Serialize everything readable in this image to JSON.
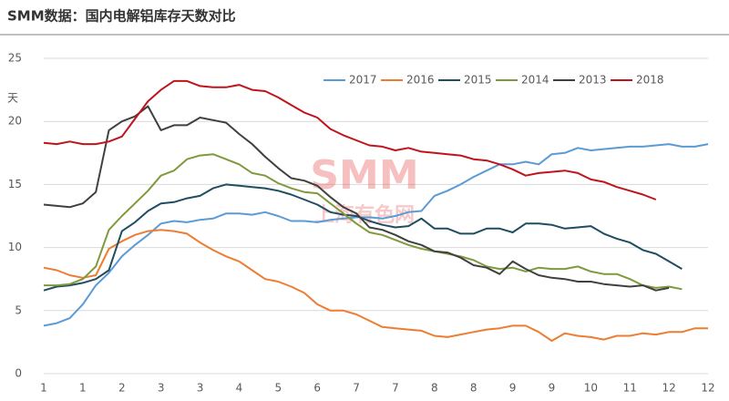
{
  "chart_data": {
    "type": "line",
    "title": "SMM数据：国内电解铝库存天数对比",
    "y_label": "天",
    "watermark": [
      "SMM",
      "上海有色网"
    ],
    "categories": [
      "1",
      null,
      null,
      "1",
      null,
      null,
      "2",
      null,
      null,
      "3",
      null,
      null,
      "3",
      null,
      null,
      "4",
      null,
      null,
      "5",
      null,
      null,
      "6",
      null,
      null,
      "7",
      null,
      null,
      "7",
      null,
      null,
      "8",
      null,
      null,
      "8",
      null,
      null,
      "9",
      null,
      null,
      "9",
      null,
      null,
      "10",
      null,
      null,
      "11",
      null,
      null,
      "12",
      null,
      null,
      "12"
    ],
    "ylim": [
      0,
      25
    ],
    "yticks": [
      0,
      5,
      10,
      15,
      20,
      25
    ],
    "grid": true,
    "legend": "top",
    "series": [
      {
        "name": "2017",
        "color": "#5b9bd5",
        "values": [
          3.8,
          4.0,
          4.4,
          5.5,
          7.0,
          8.0,
          9.3,
          10.2,
          11.0,
          11.9,
          12.1,
          12.0,
          12.2,
          12.3,
          12.7,
          12.7,
          12.6,
          12.8,
          12.5,
          12.1,
          12.1,
          12.0,
          12.2,
          12.3,
          12.4,
          12.4,
          12.3,
          12.5,
          12.8,
          12.9,
          14.1,
          14.5,
          15.0,
          15.6,
          16.1,
          16.6,
          16.6,
          16.8,
          16.6,
          17.4,
          17.5,
          17.9,
          17.7,
          17.8,
          17.9,
          18.0,
          18.0,
          18.1,
          18.2,
          18.0,
          18.0,
          18.2
        ]
      },
      {
        "name": "2016",
        "color": "#ed7d31",
        "values": [
          8.4,
          8.2,
          7.8,
          7.6,
          7.8,
          9.9,
          10.5,
          11.0,
          11.3,
          11.4,
          11.3,
          11.1,
          10.4,
          9.8,
          9.3,
          8.9,
          8.2,
          7.5,
          7.3,
          6.9,
          6.4,
          5.5,
          5.0,
          5.0,
          4.7,
          4.2,
          3.7,
          3.6,
          3.5,
          3.4,
          3.0,
          2.9,
          3.1,
          3.3,
          3.5,
          3.6,
          3.8,
          3.8,
          3.3,
          2.6,
          3.2,
          3.0,
          2.9,
          2.7,
          3.0,
          3.0,
          3.2,
          3.1,
          3.3,
          3.3,
          3.6,
          3.6
        ]
      },
      {
        "name": "2015",
        "color": "#1f4e5f",
        "values": [
          6.6,
          6.9,
          7.0,
          7.2,
          7.5,
          8.2,
          11.3,
          12.0,
          12.9,
          13.5,
          13.6,
          13.9,
          14.1,
          14.7,
          15.0,
          14.9,
          14.8,
          14.7,
          14.5,
          14.2,
          13.8,
          13.4,
          12.8,
          12.6,
          12.5,
          12.1,
          11.8,
          11.6,
          11.7,
          12.3,
          11.5,
          11.5,
          11.1,
          11.1,
          11.5,
          11.5,
          11.2,
          11.9,
          11.9,
          11.8,
          11.5,
          11.6,
          11.7,
          11.1,
          10.7,
          10.4,
          9.8,
          9.5,
          8.9,
          8.3,
          null,
          null
        ]
      },
      {
        "name": "2014",
        "color": "#7f9a3c",
        "values": [
          7.0,
          7.0,
          7.1,
          7.5,
          8.5,
          11.4,
          12.5,
          13.5,
          14.5,
          15.7,
          16.1,
          17.0,
          17.3,
          17.4,
          17.0,
          16.6,
          15.9,
          15.7,
          15.1,
          14.7,
          14.4,
          14.3,
          13.5,
          12.7,
          11.9,
          11.2,
          11.0,
          10.6,
          10.2,
          9.9,
          9.7,
          9.5,
          9.3,
          9.0,
          8.5,
          8.3,
          8.4,
          8.1,
          8.4,
          8.3,
          8.3,
          8.5,
          8.1,
          7.9,
          7.9,
          7.5,
          7.0,
          6.8,
          6.9,
          6.7,
          null,
          null
        ]
      },
      {
        "name": "2013",
        "color": "#404040",
        "values": [
          13.4,
          13.3,
          13.2,
          13.5,
          14.4,
          19.3,
          20.0,
          20.4,
          21.2,
          19.3,
          19.7,
          19.7,
          20.3,
          20.1,
          19.9,
          19.0,
          18.2,
          17.2,
          16.3,
          15.5,
          15.3,
          14.9,
          14.0,
          13.2,
          12.7,
          11.6,
          11.4,
          11.0,
          10.5,
          10.2,
          9.7,
          9.6,
          9.2,
          8.6,
          8.4,
          7.9,
          8.9,
          8.3,
          7.8,
          7.6,
          7.5,
          7.3,
          7.3,
          7.1,
          7.0,
          6.9,
          7.0,
          6.6,
          6.8,
          null,
          null,
          null
        ]
      },
      {
        "name": "2018",
        "color": "#c0141c",
        "values": [
          18.3,
          18.2,
          18.4,
          18.2,
          18.2,
          18.4,
          18.8,
          20.2,
          21.6,
          22.5,
          23.2,
          23.2,
          22.8,
          22.7,
          22.7,
          22.9,
          22.5,
          22.4,
          21.9,
          21.3,
          20.7,
          20.3,
          19.4,
          18.9,
          18.5,
          18.1,
          18.0,
          17.7,
          17.9,
          17.6,
          17.5,
          17.4,
          17.3,
          17.0,
          16.9,
          16.6,
          16.2,
          15.7,
          15.9,
          16.0,
          16.1,
          15.9,
          15.4,
          15.2,
          14.8,
          14.5,
          14.2,
          13.8,
          null,
          null,
          null,
          null
        ]
      }
    ]
  }
}
